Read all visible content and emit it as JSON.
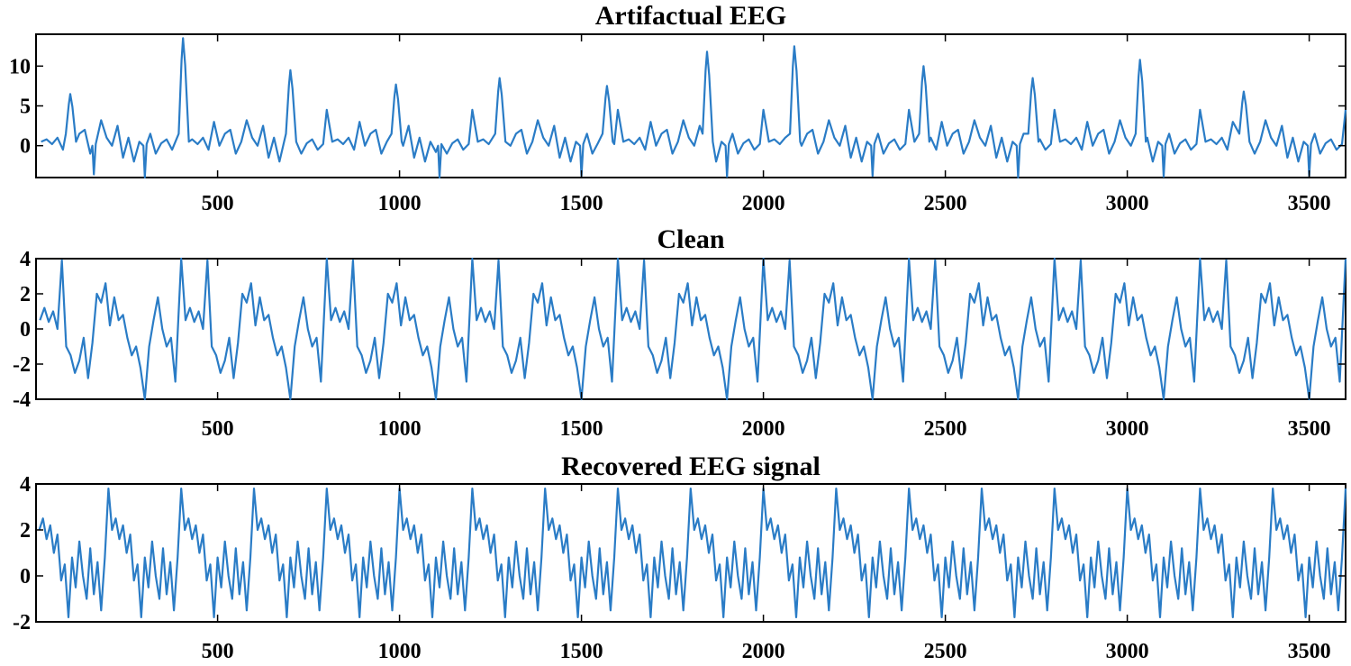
{
  "colors": {
    "trace": "#2a7cc6",
    "axis": "#000000",
    "background": "#ffffff"
  },
  "chart_data": [
    {
      "type": "line",
      "title": "Artifactual EEG",
      "xlim": [
        1,
        3600
      ],
      "ylim": [
        -4,
        14
      ],
      "xticks": [
        500,
        1000,
        1500,
        2000,
        2500,
        3000,
        3500
      ],
      "yticks": [
        0,
        5,
        10
      ],
      "grid": false,
      "series": [
        {
          "period": 400,
          "pattern_x": [
            0,
            15,
            30,
            45,
            60,
            75,
            90,
            105,
            120,
            135,
            150,
            165,
            180,
            195,
            210,
            225,
            240,
            255,
            270,
            285,
            300,
            315,
            330,
            345,
            360,
            375,
            390
          ],
          "pattern_y": [
            4.5,
            0.5,
            0.8,
            0.2,
            1.0,
            -0.5,
            3.0,
            0.0,
            1.5,
            2.0,
            -1.0,
            0.5,
            3.2,
            1.0,
            0.0,
            2.5,
            -1.5,
            1.0,
            -2.0,
            0.5,
            -0.8,
            1.5,
            -1.0,
            0.3,
            0.8,
            -0.5,
            0.2
          ],
          "spikes": [
            {
              "x": 95,
              "y": 6.5
            },
            {
              "x": 405,
              "y": 13.5
            },
            {
              "x": 700,
              "y": 9.5
            },
            {
              "x": 990,
              "y": 7.7
            },
            {
              "x": 1275,
              "y": 8.5
            },
            {
              "x": 1570,
              "y": 7.5
            },
            {
              "x": 1845,
              "y": 11.8
            },
            {
              "x": 2085,
              "y": 12.5
            },
            {
              "x": 2440,
              "y": 10.0
            },
            {
              "x": 2740,
              "y": 8.5
            },
            {
              "x": 3035,
              "y": 10.8
            },
            {
              "x": 3320,
              "y": 6.8
            }
          ],
          "dips": [
            {
              "x": 160,
              "y": -3.6
            },
            {
              "x": 300,
              "y": -4.0
            },
            {
              "x": 1110,
              "y": -4.0
            },
            {
              "x": 1500,
              "y": -3.8
            },
            {
              "x": 1900,
              "y": -3.9
            },
            {
              "x": 2300,
              "y": -3.8
            },
            {
              "x": 2700,
              "y": -4.0
            },
            {
              "x": 3100,
              "y": -3.9
            },
            {
              "x": 3500,
              "y": -3.8
            }
          ]
        }
      ]
    },
    {
      "type": "line",
      "title": "Clean",
      "xlim": [
        1,
        3600
      ],
      "ylim": [
        -4,
        4
      ],
      "xticks": [
        500,
        1000,
        1500,
        2000,
        2500,
        3000,
        3500
      ],
      "yticks": [
        -4,
        -2,
        0,
        2,
        4
      ],
      "grid": false,
      "series": [
        {
          "period": 400,
          "pattern_x": [
            0,
            12,
            24,
            36,
            48,
            60,
            72,
            84,
            96,
            108,
            120,
            132,
            144,
            156,
            168,
            180,
            192,
            204,
            216,
            228,
            240,
            252,
            264,
            276,
            288,
            300,
            312,
            324,
            336,
            348,
            360,
            372,
            384
          ],
          "pattern_y": [
            4.0,
            0.5,
            1.2,
            0.4,
            1.0,
            0.0,
            3.9,
            -1.0,
            -1.5,
            -2.5,
            -1.8,
            -0.5,
            -2.8,
            -0.8,
            2.0,
            1.5,
            2.6,
            0.2,
            1.8,
            0.5,
            0.8,
            -0.5,
            -1.5,
            -1.0,
            -2.2,
            -4.0,
            -1.0,
            0.5,
            1.8,
            0.0,
            -1.0,
            -0.5,
            -3.0
          ],
          "spikes": [],
          "dips": []
        }
      ]
    },
    {
      "type": "line",
      "title": "Recovered EEG signal",
      "xlim": [
        1,
        3600
      ],
      "ylim": [
        -2,
        4
      ],
      "xticks": [
        500,
        1000,
        1500,
        2000,
        2500,
        3000,
        3500
      ],
      "yticks": [
        -2,
        0,
        2,
        4
      ],
      "grid": false,
      "series": [
        {
          "period": 200,
          "pattern_x": [
            0,
            10,
            20,
            30,
            40,
            50,
            60,
            70,
            80,
            90,
            100,
            110,
            120,
            130,
            140,
            150,
            160,
            170,
            180,
            190
          ],
          "pattern_y": [
            3.8,
            2.0,
            2.5,
            1.6,
            2.2,
            1.0,
            1.8,
            -0.2,
            0.5,
            -1.8,
            0.8,
            -0.5,
            1.5,
            0.0,
            -1.0,
            1.2,
            -0.8,
            0.6,
            -1.5,
            0.8
          ],
          "spikes": [],
          "dips": []
        }
      ]
    }
  ]
}
